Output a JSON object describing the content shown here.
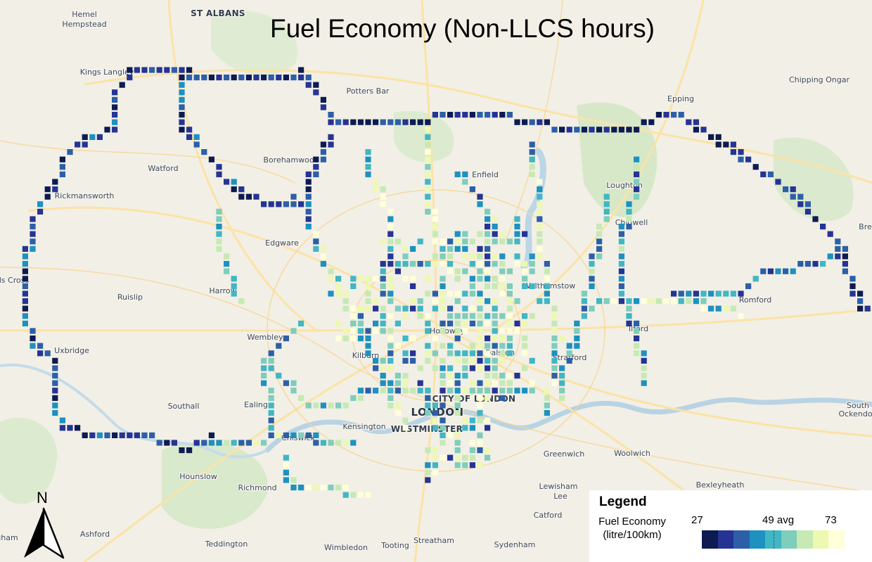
{
  "map": {
    "title": "Fuel Economy (Non-LLCS hours)",
    "north_label": "N",
    "places": [
      {
        "name": "Hemel",
        "kind": "minor"
      },
      {
        "name": "Hempstead",
        "kind": "minor"
      },
      {
        "name": "ST ALBANS",
        "kind": "major"
      },
      {
        "name": "Kings Langley",
        "kind": "minor"
      },
      {
        "name": "Potters Bar",
        "kind": "minor"
      },
      {
        "name": "Chipping Ongar",
        "kind": "minor"
      },
      {
        "name": "Epping",
        "kind": "minor"
      },
      {
        "name": "Watford",
        "kind": "minor"
      },
      {
        "name": "Borehamwood",
        "kind": "minor"
      },
      {
        "name": "Enfield",
        "kind": "minor"
      },
      {
        "name": "Loughton",
        "kind": "minor"
      },
      {
        "name": "Rickmansworth",
        "kind": "minor"
      },
      {
        "name": "Chigwell",
        "kind": "minor"
      },
      {
        "name": "Edgware",
        "kind": "minor"
      },
      {
        "name": "Brei",
        "kind": "minor"
      },
      {
        "name": "ds Cross",
        "kind": "minor"
      },
      {
        "name": "Ruislip",
        "kind": "minor"
      },
      {
        "name": "Harrow",
        "kind": "minor"
      },
      {
        "name": "Walthamstow",
        "kind": "minor"
      },
      {
        "name": "Romford",
        "kind": "minor"
      },
      {
        "name": "Ilford",
        "kind": "minor"
      },
      {
        "name": "Holloway",
        "kind": "minor"
      },
      {
        "name": "Wembley",
        "kind": "minor"
      },
      {
        "name": "Uxbridge",
        "kind": "minor"
      },
      {
        "name": "Kilburn",
        "kind": "minor"
      },
      {
        "name": "Dalston",
        "kind": "minor"
      },
      {
        "name": "Stratford",
        "kind": "minor"
      },
      {
        "name": "CITY OF LONDON",
        "kind": "major"
      },
      {
        "name": "Southall",
        "kind": "minor"
      },
      {
        "name": "Ealing",
        "kind": "minor"
      },
      {
        "name": "LONDON",
        "kind": "capital"
      },
      {
        "name": "South",
        "kind": "minor"
      },
      {
        "name": "Ockendon",
        "kind": "minor"
      },
      {
        "name": "Kensington",
        "kind": "minor"
      },
      {
        "name": "WESTMINSTER",
        "kind": "major"
      },
      {
        "name": "Chiswick",
        "kind": "minor"
      },
      {
        "name": "Greenwich",
        "kind": "minor"
      },
      {
        "name": "Woolwich",
        "kind": "minor"
      },
      {
        "name": "Hounslow",
        "kind": "minor"
      },
      {
        "name": "Richmond",
        "kind": "minor"
      },
      {
        "name": "Lewisham",
        "kind": "minor"
      },
      {
        "name": "Bexleyheath",
        "kind": "minor"
      },
      {
        "name": "Lee",
        "kind": "minor"
      },
      {
        "name": "Catford",
        "kind": "minor"
      },
      {
        "name": "gham",
        "kind": "minor"
      },
      {
        "name": "Ashford",
        "kind": "minor"
      },
      {
        "name": "Teddington",
        "kind": "minor"
      },
      {
        "name": "Wimbledon",
        "kind": "minor"
      },
      {
        "name": "Tooting",
        "kind": "minor"
      },
      {
        "name": "Streatham",
        "kind": "minor"
      },
      {
        "name": "Sydenham",
        "kind": "minor"
      }
    ]
  },
  "legend": {
    "title": "Legend",
    "label_line1": "Fuel Economy",
    "label_line2": "(litre/100km)",
    "min": "27",
    "avg": "49 avg",
    "max": "73",
    "colors": [
      "#0d1b52",
      "#253494",
      "#2c5fa8",
      "#1d91c0",
      "#41b6c4",
      "#7fcdbb",
      "#c7e9b4",
      "#edf8b1",
      "#ffffd9"
    ]
  }
}
